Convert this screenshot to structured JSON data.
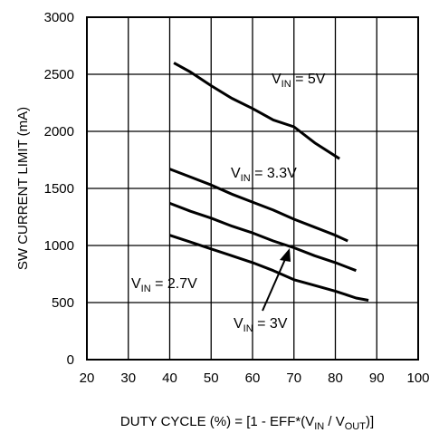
{
  "chart_data": {
    "type": "line",
    "xlabel": {
      "prefix": "DUTY CYCLE (%) = [1 - EFF*(V",
      "sub1": "IN",
      "mid": " / V",
      "sub2": "OUT",
      "suffix": ")]"
    },
    "ylabel": "SW CURRENT LIMIT (mA)",
    "xlim": [
      20,
      100
    ],
    "ylim": [
      0,
      3000
    ],
    "xticks": [
      20,
      30,
      40,
      50,
      60,
      70,
      80,
      90,
      100
    ],
    "yticks": [
      0,
      500,
      1000,
      1500,
      2000,
      2500,
      3000
    ],
    "grid": true,
    "series": [
      {
        "name": "V_IN = 5V",
        "label": {
          "v": "V",
          "sub": "IN",
          "rest": " = 5V"
        },
        "x": [
          41,
          45,
          50,
          55,
          60,
          65,
          70,
          75,
          81
        ],
        "y": [
          2600,
          2520,
          2400,
          2290,
          2200,
          2100,
          2040,
          1900,
          1760
        ]
      },
      {
        "name": "V_IN = 3.3V",
        "label": {
          "v": "V",
          "sub": "IN",
          "rest": " = 3.3V"
        },
        "x": [
          40,
          45,
          50,
          55,
          60,
          65,
          70,
          75,
          80,
          83
        ],
        "y": [
          1670,
          1600,
          1530,
          1450,
          1380,
          1310,
          1230,
          1160,
          1090,
          1040
        ]
      },
      {
        "name": "V_IN = 3V",
        "label": {
          "v": "V",
          "sub": "IN",
          "rest": " = 3V"
        },
        "x": [
          40,
          45,
          50,
          55,
          60,
          65,
          70,
          75,
          80,
          85
        ],
        "y": [
          1370,
          1300,
          1240,
          1170,
          1110,
          1040,
          980,
          910,
          850,
          780
        ]
      },
      {
        "name": "V_IN = 2.7V",
        "label": {
          "v": "V",
          "sub": "IN",
          "rest": " = 2.7V"
        },
        "x": [
          40,
          45,
          50,
          55,
          60,
          65,
          70,
          75,
          80,
          85,
          88
        ],
        "y": [
          1090,
          1030,
          970,
          910,
          850,
          780,
          700,
          650,
          600,
          540,
          520
        ]
      }
    ]
  }
}
